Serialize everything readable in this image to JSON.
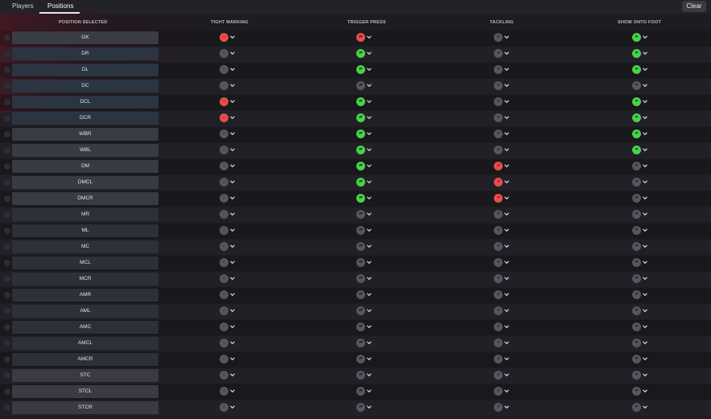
{
  "tabs": [
    {
      "label": "Players",
      "active": false
    },
    {
      "label": "Positions",
      "active": true
    }
  ],
  "clear_label": "Clear",
  "columns": {
    "position": "POSITION SELECTED",
    "tight": "TIGHT MARKING",
    "trigger": "TRIGGER PRESS",
    "tackling": "TACKLING",
    "show": "SHOW ONTO FOOT"
  },
  "colors": {
    "red": "#e84c4c",
    "green": "#49d14a",
    "neutral": "#55575e"
  },
  "rows": [
    {
      "label": "GK",
      "style": "gk",
      "tight": "red",
      "trigger": "red",
      "tackling": "neutral",
      "show": "green"
    },
    {
      "label": "DR",
      "style": "blue",
      "tight": "neutral",
      "trigger": "green",
      "tackling": "neutral",
      "show": "green"
    },
    {
      "label": "DL",
      "style": "blue",
      "tight": "neutral",
      "trigger": "green",
      "tackling": "neutral",
      "show": "green"
    },
    {
      "label": "DC",
      "style": "blue",
      "tight": "neutral",
      "trigger": "neutral",
      "tackling": "neutral",
      "show": "neutral"
    },
    {
      "label": "DCL",
      "style": "blue",
      "tight": "red",
      "trigger": "green",
      "tackling": "neutral",
      "show": "green"
    },
    {
      "label": "DCR",
      "style": "blue",
      "tight": "red",
      "trigger": "green",
      "tackling": "neutral",
      "show": "green"
    },
    {
      "label": "WBR",
      "style": "wing",
      "tight": "neutral",
      "trigger": "green",
      "tackling": "neutral",
      "show": "green"
    },
    {
      "label": "WBL",
      "style": "wing",
      "tight": "neutral",
      "trigger": "green",
      "tackling": "neutral",
      "show": "green"
    },
    {
      "label": "DM",
      "style": "wing",
      "tight": "neutral",
      "trigger": "green",
      "tackling": "red",
      "show": "neutral"
    },
    {
      "label": "DMCL",
      "style": "wing",
      "tight": "neutral",
      "trigger": "green",
      "tackling": "red",
      "show": "neutral"
    },
    {
      "label": "DMCR",
      "style": "wing",
      "tight": "neutral",
      "trigger": "green",
      "tackling": "red",
      "show": "neutral"
    },
    {
      "label": "MR",
      "style": "grey",
      "tight": "neutral",
      "trigger": "neutral",
      "tackling": "neutral",
      "show": "neutral"
    },
    {
      "label": "ML",
      "style": "grey",
      "tight": "neutral",
      "trigger": "neutral",
      "tackling": "neutral",
      "show": "neutral"
    },
    {
      "label": "MC",
      "style": "grey",
      "tight": "neutral",
      "trigger": "neutral",
      "tackling": "neutral",
      "show": "neutral"
    },
    {
      "label": "MCL",
      "style": "grey",
      "tight": "neutral",
      "trigger": "neutral",
      "tackling": "neutral",
      "show": "neutral"
    },
    {
      "label": "MCR",
      "style": "grey",
      "tight": "neutral",
      "trigger": "neutral",
      "tackling": "neutral",
      "show": "neutral"
    },
    {
      "label": "AMR",
      "style": "grey",
      "tight": "neutral",
      "trigger": "neutral",
      "tackling": "neutral",
      "show": "neutral"
    },
    {
      "label": "AML",
      "style": "grey",
      "tight": "neutral",
      "trigger": "neutral",
      "tackling": "neutral",
      "show": "neutral"
    },
    {
      "label": "AMC",
      "style": "grey",
      "tight": "neutral",
      "trigger": "neutral",
      "tackling": "neutral",
      "show": "neutral"
    },
    {
      "label": "AMCL",
      "style": "grey",
      "tight": "neutral",
      "trigger": "neutral",
      "tackling": "neutral",
      "show": "neutral"
    },
    {
      "label": "AMCR",
      "style": "grey",
      "tight": "neutral",
      "trigger": "neutral",
      "tackling": "neutral",
      "show": "neutral"
    },
    {
      "label": "STC",
      "style": "str",
      "tight": "neutral",
      "trigger": "neutral",
      "tackling": "neutral",
      "show": "neutral"
    },
    {
      "label": "STCL",
      "style": "str",
      "tight": "neutral",
      "trigger": "neutral",
      "tackling": "neutral",
      "show": "neutral"
    },
    {
      "label": "STCR",
      "style": "str",
      "tight": "neutral",
      "trigger": "neutral",
      "tackling": "neutral",
      "show": "neutral"
    }
  ]
}
